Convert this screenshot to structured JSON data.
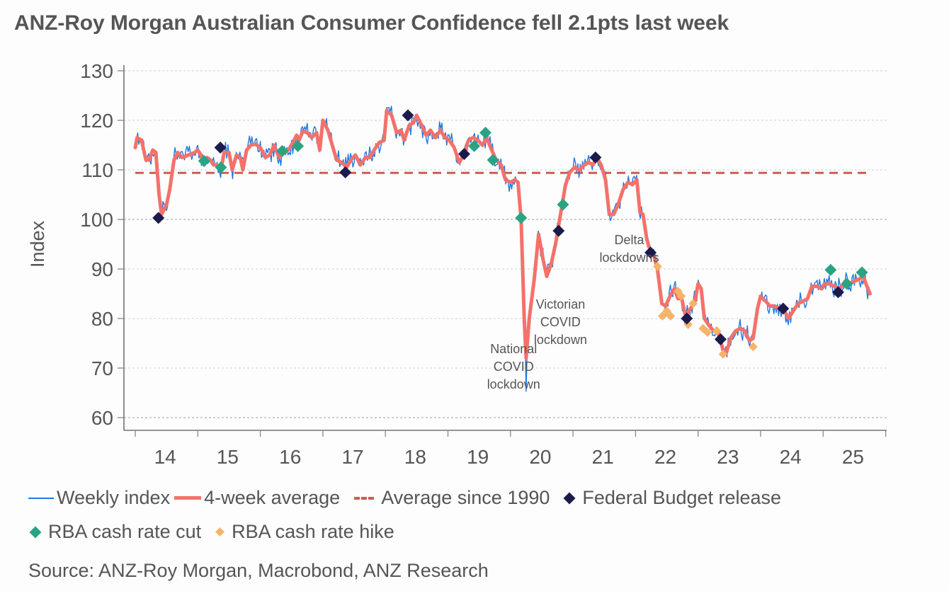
{
  "title": "ANZ-Roy Morgan Australian Consumer Confidence fell 2.1pts last week",
  "source": "Source: ANZ-Roy Morgan, Macrobond, ANZ Research",
  "colors": {
    "weekly": "#1f77e0",
    "avg4": "#f4716a",
    "avg_since_1990": "#d05a52",
    "budget": "#1c1a4a",
    "rba_cut": "#2aa383",
    "rba_hike": "#f7b36a",
    "text": "#555555",
    "grid": "#c5d2dc",
    "axis": "#555555"
  },
  "legend": [
    {
      "key": "weekly",
      "label": "Weekly index",
      "type": "line"
    },
    {
      "key": "avg4",
      "label": "4-week average",
      "type": "thick-line"
    },
    {
      "key": "avg_since_1990",
      "label": "Average since 1990",
      "type": "dashed"
    },
    {
      "key": "budget",
      "label": "Federal Budget release",
      "type": "diamond"
    },
    {
      "key": "rba_cut",
      "label": "RBA cash rate cut",
      "type": "diamond"
    },
    {
      "key": "rba_hike",
      "label": "RBA cash rate hike",
      "type": "diamond"
    }
  ],
  "chart_data": {
    "type": "line",
    "title": "ANZ-Roy Morgan Australian Consumer Confidence fell 2.1pts last week",
    "xlabel": "",
    "ylabel": "Index",
    "ylim": [
      60,
      130
    ],
    "yticks": [
      60,
      70,
      80,
      90,
      100,
      110,
      120,
      130
    ],
    "xlim": [
      2014,
      2026
    ],
    "xtick_labels": [
      "14",
      "15",
      "16",
      "17",
      "18",
      "19",
      "20",
      "21",
      "22",
      "23",
      "24",
      "25"
    ],
    "grid": "horizontal dotted",
    "legend_position": "bottom",
    "average_since_1990": {
      "value": 109.4,
      "x_range": [
        2014,
        2025.7
      ]
    },
    "series": [
      {
        "name": "4-week average",
        "key": "avg4",
        "points": [
          [
            2014.0,
            114.5
          ],
          [
            2014.03,
            116.5
          ],
          [
            2014.1,
            116
          ],
          [
            2014.17,
            112
          ],
          [
            2014.22,
            112
          ],
          [
            2014.28,
            114
          ],
          [
            2014.33,
            113.5
          ],
          [
            2014.38,
            105
          ],
          [
            2014.42,
            101
          ],
          [
            2014.5,
            103
          ],
          [
            2014.55,
            106
          ],
          [
            2014.62,
            112
          ],
          [
            2014.68,
            113.5
          ],
          [
            2014.75,
            112.5
          ],
          [
            2014.85,
            113
          ],
          [
            2014.95,
            113.5
          ],
          [
            2015.0,
            114
          ],
          [
            2015.05,
            113
          ],
          [
            2015.1,
            111
          ],
          [
            2015.15,
            112.5
          ],
          [
            2015.2,
            112
          ],
          [
            2015.25,
            111
          ],
          [
            2015.3,
            111
          ],
          [
            2015.37,
            110
          ],
          [
            2015.42,
            113.5
          ],
          [
            2015.5,
            113.5
          ],
          [
            2015.55,
            110
          ],
          [
            2015.62,
            113
          ],
          [
            2015.68,
            112.5
          ],
          [
            2015.72,
            110
          ],
          [
            2015.78,
            114
          ],
          [
            2015.85,
            115
          ],
          [
            2015.92,
            115.2
          ],
          [
            2016.0,
            114.5
          ],
          [
            2016.08,
            112.5
          ],
          [
            2016.15,
            113
          ],
          [
            2016.22,
            115
          ],
          [
            2016.3,
            112.5
          ],
          [
            2016.38,
            113.5
          ],
          [
            2016.45,
            114
          ],
          [
            2016.52,
            115.5
          ],
          [
            2016.58,
            117
          ],
          [
            2016.62,
            116
          ],
          [
            2016.68,
            117.8
          ],
          [
            2016.75,
            117.5
          ],
          [
            2016.82,
            116.5
          ],
          [
            2016.9,
            117.5
          ],
          [
            2016.95,
            114
          ],
          [
            2017.0,
            120
          ],
          [
            2017.08,
            118
          ],
          [
            2017.15,
            115
          ],
          [
            2017.22,
            112
          ],
          [
            2017.3,
            111.5
          ],
          [
            2017.38,
            110.5
          ],
          [
            2017.45,
            112
          ],
          [
            2017.52,
            113
          ],
          [
            2017.6,
            111
          ],
          [
            2017.68,
            112.5
          ],
          [
            2017.75,
            112.5
          ],
          [
            2017.82,
            114
          ],
          [
            2017.9,
            115.5
          ],
          [
            2017.98,
            116
          ],
          [
            2018.02,
            122
          ],
          [
            2018.1,
            121
          ],
          [
            2018.18,
            117.5
          ],
          [
            2018.25,
            118
          ],
          [
            2018.3,
            116
          ],
          [
            2018.38,
            119
          ],
          [
            2018.45,
            119.5
          ],
          [
            2018.5,
            121
          ],
          [
            2018.58,
            119
          ],
          [
            2018.65,
            117
          ],
          [
            2018.72,
            118
          ],
          [
            2018.8,
            116.5
          ],
          [
            2018.88,
            118
          ],
          [
            2018.95,
            116.5
          ],
          [
            2019.02,
            116
          ],
          [
            2019.1,
            114.5
          ],
          [
            2019.18,
            111.5
          ],
          [
            2019.25,
            113
          ],
          [
            2019.33,
            116
          ],
          [
            2019.4,
            116.5
          ],
          [
            2019.48,
            116
          ],
          [
            2019.55,
            115
          ],
          [
            2019.62,
            116.5
          ],
          [
            2019.7,
            114
          ],
          [
            2019.77,
            112
          ],
          [
            2019.85,
            111
          ],
          [
            2019.92,
            108
          ],
          [
            2020.0,
            107.5
          ],
          [
            2020.07,
            108
          ],
          [
            2020.12,
            107.5
          ],
          [
            2020.17,
            100
          ],
          [
            2020.22,
            80
          ],
          [
            2020.25,
            72
          ],
          [
            2020.3,
            80
          ],
          [
            2020.38,
            88
          ],
          [
            2020.45,
            97
          ],
          [
            2020.52,
            92
          ],
          [
            2020.58,
            88.5
          ],
          [
            2020.65,
            91
          ],
          [
            2020.72,
            95
          ],
          [
            2020.8,
            101
          ],
          [
            2020.88,
            107
          ],
          [
            2020.95,
            109.5
          ],
          [
            2021.02,
            110.5
          ],
          [
            2021.1,
            110
          ],
          [
            2021.18,
            111
          ],
          [
            2021.25,
            111.5
          ],
          [
            2021.32,
            111
          ],
          [
            2021.38,
            112.5
          ],
          [
            2021.45,
            111
          ],
          [
            2021.52,
            108
          ],
          [
            2021.58,
            101
          ],
          [
            2021.65,
            101
          ],
          [
            2021.72,
            103
          ],
          [
            2021.8,
            106
          ],
          [
            2021.88,
            107.5
          ],
          [
            2021.95,
            107
          ],
          [
            2022.02,
            108
          ],
          [
            2022.07,
            101.5
          ],
          [
            2022.12,
            101
          ],
          [
            2022.18,
            96
          ],
          [
            2022.24,
            93.5
          ],
          [
            2022.3,
            92.5
          ],
          [
            2022.35,
            90
          ],
          [
            2022.42,
            83
          ],
          [
            2022.48,
            82.5
          ],
          [
            2022.55,
            84.5
          ],
          [
            2022.62,
            86
          ],
          [
            2022.68,
            84
          ],
          [
            2022.73,
            84.5
          ],
          [
            2022.8,
            80.5
          ],
          [
            2022.88,
            82
          ],
          [
            2022.95,
            83.5
          ],
          [
            2023.0,
            87
          ],
          [
            2023.05,
            86
          ],
          [
            2023.1,
            80
          ],
          [
            2023.18,
            78.5
          ],
          [
            2023.25,
            77.5
          ],
          [
            2023.32,
            77.5
          ],
          [
            2023.4,
            73.5
          ],
          [
            2023.45,
            73
          ],
          [
            2023.52,
            76
          ],
          [
            2023.6,
            77.5
          ],
          [
            2023.68,
            78
          ],
          [
            2023.75,
            77.5
          ],
          [
            2023.82,
            75.5
          ],
          [
            2023.88,
            76
          ],
          [
            2023.95,
            82
          ],
          [
            2024.0,
            84.5
          ],
          [
            2024.08,
            83.5
          ],
          [
            2024.15,
            82.5
          ],
          [
            2024.22,
            82.5
          ],
          [
            2024.3,
            82
          ],
          [
            2024.38,
            81.5
          ],
          [
            2024.45,
            80
          ],
          [
            2024.52,
            81.5
          ],
          [
            2024.6,
            83
          ],
          [
            2024.68,
            83.5
          ],
          [
            2024.75,
            84
          ],
          [
            2024.82,
            86.5
          ],
          [
            2024.9,
            86.5
          ],
          [
            2024.98,
            86
          ],
          [
            2025.02,
            87
          ],
          [
            2025.1,
            87
          ],
          [
            2025.18,
            86.5
          ],
          [
            2025.25,
            86
          ],
          [
            2025.3,
            86.5
          ],
          [
            2025.35,
            87.5
          ],
          [
            2025.42,
            87
          ],
          [
            2025.5,
            87.5
          ],
          [
            2025.58,
            88
          ],
          [
            2025.64,
            88.5
          ],
          [
            2025.7,
            86.5
          ],
          [
            2025.75,
            85
          ]
        ]
      }
    ],
    "weekly_noise_amplitude": 2.2,
    "markers": {
      "budget": [
        [
          2014.37,
          100.3
        ],
        [
          2015.36,
          114.5
        ],
        [
          2017.36,
          109.5
        ],
        [
          2018.36,
          121
        ],
        [
          2019.26,
          113.2
        ],
        [
          2020.77,
          97.7
        ],
        [
          2021.36,
          112.5
        ],
        [
          2022.24,
          93.3
        ],
        [
          2022.82,
          80
        ],
        [
          2023.36,
          75.8
        ],
        [
          2024.36,
          82
        ],
        [
          2025.24,
          85.3
        ]
      ],
      "rba_cut": [
        [
          2015.1,
          111.8
        ],
        [
          2015.37,
          110.5
        ],
        [
          2016.35,
          113.8
        ],
        [
          2016.6,
          114.8
        ],
        [
          2019.42,
          114.8
        ],
        [
          2019.6,
          117.5
        ],
        [
          2019.72,
          112
        ],
        [
          2020.17,
          100.3
        ],
        [
          2020.84,
          103
        ],
        [
          2025.12,
          89.8
        ],
        [
          2025.38,
          87
        ],
        [
          2025.62,
          89.3
        ]
      ],
      "rba_hike": [
        [
          2022.35,
          90.5
        ],
        [
          2022.43,
          80.5
        ],
        [
          2022.5,
          81.5
        ],
        [
          2022.56,
          80.5
        ],
        [
          2022.68,
          85.5
        ],
        [
          2022.73,
          84.5
        ],
        [
          2022.84,
          78.8
        ],
        [
          2022.92,
          83
        ],
        [
          2023.08,
          78
        ],
        [
          2023.15,
          77.2
        ],
        [
          2023.3,
          77.5
        ],
        [
          2023.4,
          72.8
        ],
        [
          2023.88,
          74.3
        ]
      ]
    },
    "annotations": [
      {
        "lines": [
          "National",
          "COVID",
          "lockdown"
        ],
        "x": 2020.05,
        "y": 73
      },
      {
        "lines": [
          "Victorian",
          "COVID",
          "lockdown"
        ],
        "x": 2020.8,
        "y": 82
      },
      {
        "lines": [
          "Delta",
          "lockdowns"
        ],
        "x": 2021.9,
        "y": 95
      }
    ]
  }
}
